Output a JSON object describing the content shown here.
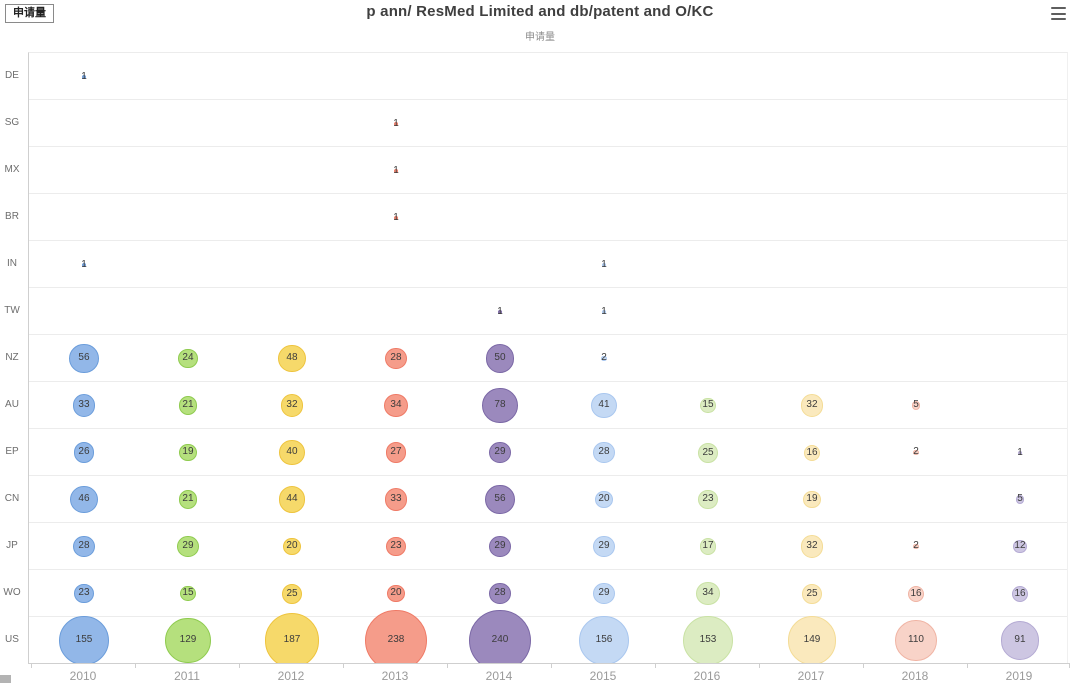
{
  "header": {
    "filter_button_label": "申请量",
    "title": "p ann/ ResMed Limited and db/patent and O/KC",
    "subtitle": "申请量"
  },
  "chart_data": {
    "type": "scatter",
    "subtype": "bubble-matrix",
    "title": "p ann/ ResMed Limited and db/patent and O/KC",
    "subtitle": "申请量",
    "x_categories": [
      "2010",
      "2011",
      "2012",
      "2013",
      "2014",
      "2015",
      "2016",
      "2017",
      "2018",
      "2019"
    ],
    "y_categories_top_to_bottom": [
      "DE",
      "SG",
      "MX",
      "BR",
      "IN",
      "TW",
      "NZ",
      "AU",
      "EP",
      "CN",
      "JP",
      "WO",
      "US"
    ],
    "series": [
      {
        "name": "DE",
        "values": [
          1,
          null,
          null,
          null,
          null,
          null,
          null,
          null,
          null,
          null
        ]
      },
      {
        "name": "SG",
        "values": [
          null,
          null,
          null,
          1,
          null,
          null,
          null,
          null,
          null,
          null
        ]
      },
      {
        "name": "MX",
        "values": [
          null,
          null,
          null,
          1,
          null,
          null,
          null,
          null,
          null,
          null
        ]
      },
      {
        "name": "BR",
        "values": [
          null,
          null,
          null,
          1,
          null,
          null,
          null,
          null,
          null,
          null
        ]
      },
      {
        "name": "IN",
        "values": [
          1,
          null,
          null,
          null,
          null,
          1,
          null,
          null,
          null,
          null
        ]
      },
      {
        "name": "TW",
        "values": [
          null,
          null,
          null,
          null,
          1,
          1,
          null,
          null,
          null,
          null
        ]
      },
      {
        "name": "NZ",
        "values": [
          56,
          24,
          48,
          28,
          50,
          2,
          null,
          null,
          null,
          null
        ]
      },
      {
        "name": "AU",
        "values": [
          33,
          21,
          32,
          34,
          78,
          41,
          15,
          32,
          5,
          null
        ]
      },
      {
        "name": "EP",
        "values": [
          26,
          19,
          40,
          27,
          29,
          28,
          25,
          16,
          2,
          1
        ]
      },
      {
        "name": "CN",
        "values": [
          46,
          21,
          44,
          33,
          56,
          20,
          23,
          19,
          null,
          5
        ]
      },
      {
        "name": "JP",
        "values": [
          28,
          29,
          20,
          23,
          29,
          29,
          17,
          32,
          2,
          12
        ]
      },
      {
        "name": "WO",
        "values": [
          23,
          15,
          25,
          20,
          28,
          29,
          34,
          25,
          16,
          16
        ]
      },
      {
        "name": "US",
        "values": [
          155,
          129,
          187,
          238,
          240,
          156,
          153,
          149,
          110,
          91
        ]
      }
    ],
    "column_colors": [
      {
        "year": "2010",
        "fill": "#92b7e8",
        "border": "#6b9ddb"
      },
      {
        "year": "2011",
        "fill": "#b5e07d",
        "border": "#8fcb4f"
      },
      {
        "year": "2012",
        "fill": "#f6d96a",
        "border": "#eec43e"
      },
      {
        "year": "2013",
        "fill": "#f59c8a",
        "border": "#ef7a66"
      },
      {
        "year": "2014",
        "fill": "#9b89bd",
        "border": "#7b68a6"
      },
      {
        "year": "2015",
        "fill": "#c4d9f4",
        "border": "#a9c7ef"
      },
      {
        "year": "2016",
        "fill": "#dcecc2",
        "border": "#c9e2a4"
      },
      {
        "year": "2017",
        "fill": "#fae9bd",
        "border": "#f4dc96"
      },
      {
        "year": "2018",
        "fill": "#f8d3c8",
        "border": "#f0b4a4"
      },
      {
        "year": "2019",
        "fill": "#cdc6e2",
        "border": "#b4aad3"
      }
    ],
    "size_rule": "radius_px = 2 * sqrt(value)",
    "grid": "horizontal row separators, left and bottom axis lines, bottom tick marks",
    "legend_position": "none"
  }
}
